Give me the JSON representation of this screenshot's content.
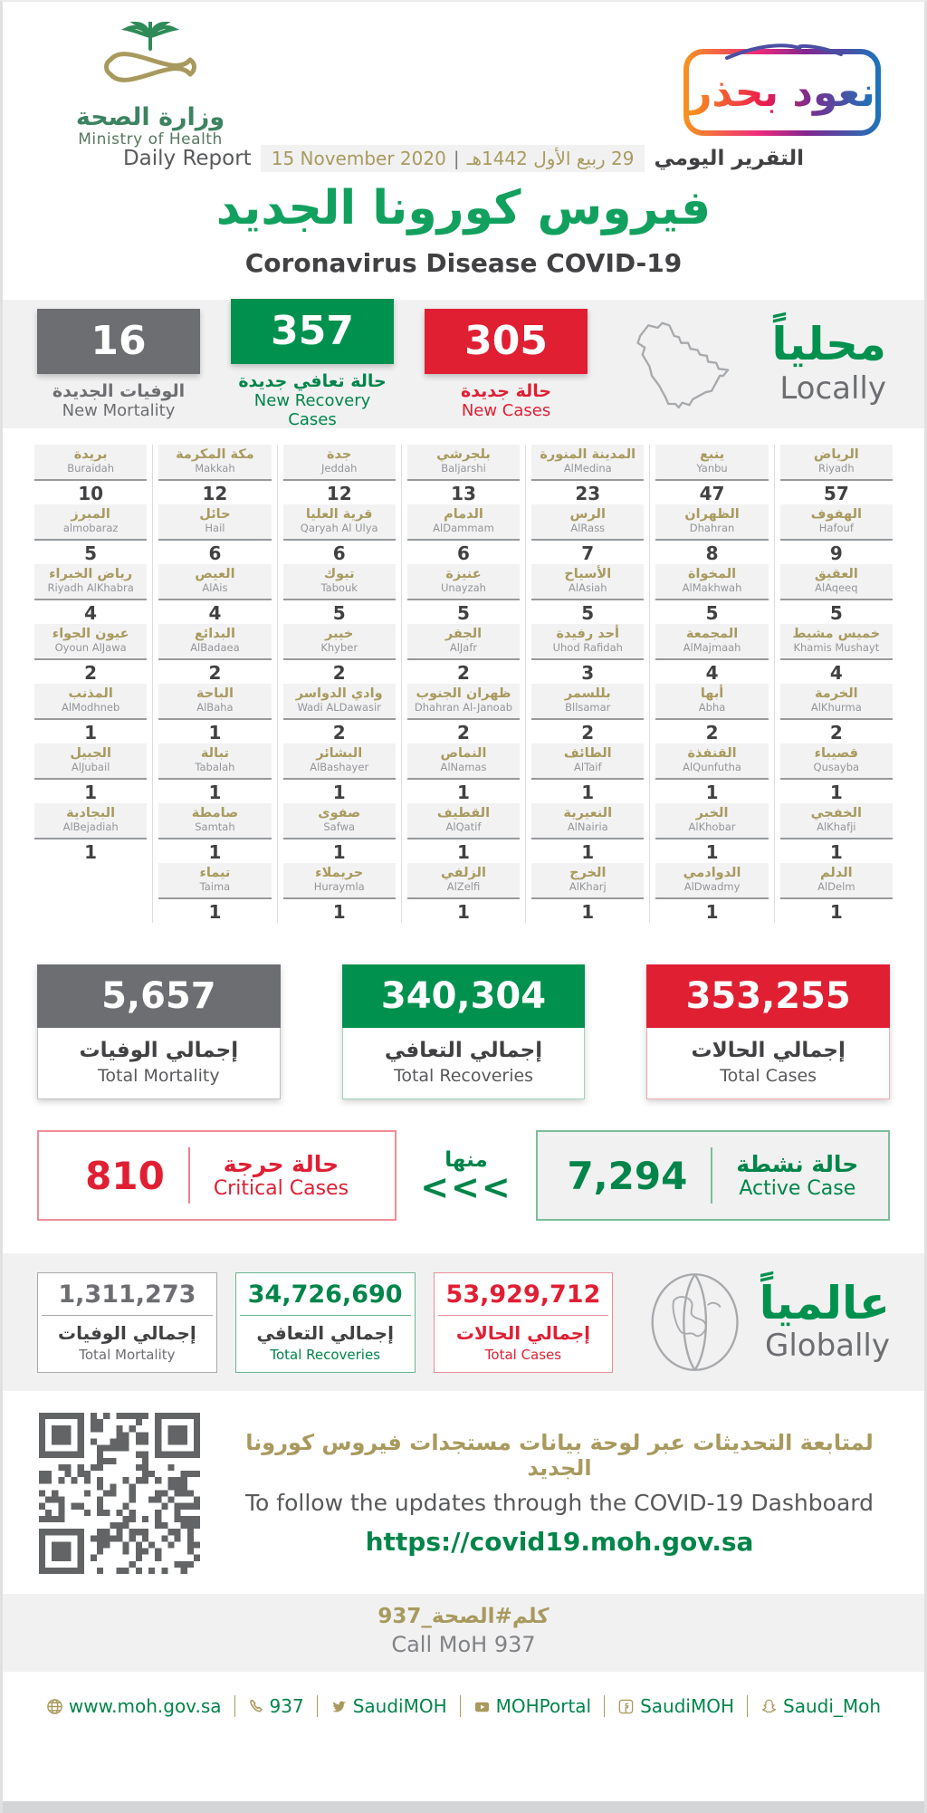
{
  "header": {
    "ministry_ar": "وزارة الصحة",
    "ministry_en": "Ministry of Health",
    "badge_text": "نعود بحذر"
  },
  "report": {
    "daily_report_en": "Daily Report",
    "date_en": "15 November 2020",
    "date_divider": "|",
    "date_hijri": "29 ربيع الأول 1442هـ",
    "daily_report_ar": "التقرير اليومي",
    "title_ar": "فيروس كورونا الجديد",
    "title_en": "Coronavirus Disease COVID-19"
  },
  "locally": {
    "label_ar": "محلياً",
    "label_en": "Locally",
    "new_mortality": {
      "value": "16",
      "label_ar": "الوفيات الجديدة",
      "label_en": "New Mortality"
    },
    "new_recovery": {
      "value": "357",
      "label_ar": "حالة تعافي جديدة",
      "label_en": "New Recovery Cases"
    },
    "new_cases": {
      "value": "305",
      "label_ar": "حالة جديدة",
      "label_en": "New Cases"
    }
  },
  "cities": {
    "columns": [
      {
        "items": [
          {
            "ar": "بريدة",
            "en": "Buraidah",
            "value": "10"
          },
          {
            "ar": "المبرز",
            "en": "almobaraz",
            "value": "5"
          },
          {
            "ar": "رياض الخبراء",
            "en": "Riyadh AlKhabra",
            "value": "4"
          },
          {
            "ar": "عيون الجواء",
            "en": "Oyoun AlJawa",
            "value": "2"
          },
          {
            "ar": "المذنب",
            "en": "AlModhneb",
            "value": "1"
          },
          {
            "ar": "الجبيل",
            "en": "AlJubail",
            "value": "1"
          },
          {
            "ar": "البجادية",
            "en": "AlBejadiah",
            "value": "1"
          }
        ]
      },
      {
        "items": [
          {
            "ar": "مكة المكرمة",
            "en": "Makkah",
            "value": "12"
          },
          {
            "ar": "حائل",
            "en": "Hail",
            "value": "6"
          },
          {
            "ar": "العيص",
            "en": "AlAis",
            "value": "4"
          },
          {
            "ar": "البدائع",
            "en": "AlBadaea",
            "value": "2"
          },
          {
            "ar": "الباحة",
            "en": "AlBaha",
            "value": "1"
          },
          {
            "ar": "تبالة",
            "en": "Tabalah",
            "value": "1"
          },
          {
            "ar": "صامطة",
            "en": "Samtah",
            "value": "1"
          },
          {
            "ar": "تيماء",
            "en": "Taima",
            "value": "1"
          }
        ]
      },
      {
        "items": [
          {
            "ar": "جدة",
            "en": "Jeddah",
            "value": "12"
          },
          {
            "ar": "قرية العليا",
            "en": "Qaryah Al Ulya",
            "value": "6"
          },
          {
            "ar": "تبوك",
            "en": "Tabouk",
            "value": "5"
          },
          {
            "ar": "خيبر",
            "en": "Khyber",
            "value": "2"
          },
          {
            "ar": "وادي الدواسر",
            "en": "Wadi ALDawasir",
            "value": "2"
          },
          {
            "ar": "البشائر",
            "en": "AlBashayer",
            "value": "1"
          },
          {
            "ar": "صفوى",
            "en": "Safwa",
            "value": "1"
          },
          {
            "ar": "حريملاء",
            "en": "Huraymla",
            "value": "1"
          }
        ]
      },
      {
        "items": [
          {
            "ar": "بلجرشي",
            "en": "Baljarshi",
            "value": "13"
          },
          {
            "ar": "الدمام",
            "en": "AlDammam",
            "value": "6"
          },
          {
            "ar": "عنيزة",
            "en": "Unayzah",
            "value": "5"
          },
          {
            "ar": "الجفر",
            "en": "AlJafr",
            "value": "2"
          },
          {
            "ar": "ظهران الجنوب",
            "en": "Dhahran Al-Janoab",
            "value": "2"
          },
          {
            "ar": "النماص",
            "en": "AlNamas",
            "value": "1"
          },
          {
            "ar": "القطيف",
            "en": "AlQatif",
            "value": "1"
          },
          {
            "ar": "الزلفي",
            "en": "AlZelfi",
            "value": "1"
          }
        ]
      },
      {
        "items": [
          {
            "ar": "المدينة المنورة",
            "en": "AlMedina",
            "value": "23"
          },
          {
            "ar": "الرس",
            "en": "AlRass",
            "value": "7"
          },
          {
            "ar": "الأسياح",
            "en": "AlAsiah",
            "value": "5"
          },
          {
            "ar": "أحد رفيدة",
            "en": "Uhod Rafidah",
            "value": "3"
          },
          {
            "ar": "بللسمر",
            "en": "Bllsamar",
            "value": "2"
          },
          {
            "ar": "الطائف",
            "en": "AlTaif",
            "value": "1"
          },
          {
            "ar": "النعيرية",
            "en": "AlNairia",
            "value": "1"
          },
          {
            "ar": "الخرج",
            "en": "AlKharj",
            "value": "1"
          }
        ]
      },
      {
        "items": [
          {
            "ar": "ينبع",
            "en": "Yanbu",
            "value": "47"
          },
          {
            "ar": "الظهران",
            "en": "Dhahran",
            "value": "8"
          },
          {
            "ar": "المخواة",
            "en": "AlMakhwah",
            "value": "5"
          },
          {
            "ar": "المجمعة",
            "en": "AlMajmaah",
            "value": "4"
          },
          {
            "ar": "أبها",
            "en": "Abha",
            "value": "2"
          },
          {
            "ar": "القنفذة",
            "en": "AlQunfutha",
            "value": "1"
          },
          {
            "ar": "الخبر",
            "en": "AlKhobar",
            "value": "1"
          },
          {
            "ar": "الدوادمي",
            "en": "AlDwadmy",
            "value": "1"
          }
        ]
      },
      {
        "items": [
          {
            "ar": "الرياض",
            "en": "Riyadh",
            "value": "57"
          },
          {
            "ar": "الهفوف",
            "en": "Hafouf",
            "value": "9"
          },
          {
            "ar": "العقيق",
            "en": "AlAqeeq",
            "value": "5"
          },
          {
            "ar": "خميس مشيط",
            "en": "Khamis Mushayt",
            "value": "4"
          },
          {
            "ar": "الخرمة",
            "en": "AlKhurma",
            "value": "2"
          },
          {
            "ar": "قصيباء",
            "en": "Qusayba",
            "value": "1"
          },
          {
            "ar": "الخفجي",
            "en": "AlKhafji",
            "value": "1"
          },
          {
            "ar": "الدلم",
            "en": "AlDelm",
            "value": "1"
          }
        ]
      }
    ]
  },
  "totals_local": {
    "mortality": {
      "value": "5,657",
      "label_ar": "إجمالي الوفيات",
      "label_en": "Total Mortality"
    },
    "recoveries": {
      "value": "340,304",
      "label_ar": "إجمالي التعافي",
      "label_en": "Total Recoveries"
    },
    "cases": {
      "value": "353,255",
      "label_ar": "إجمالي الحالات",
      "label_en": "Total Cases"
    }
  },
  "critical_active": {
    "of_which": "منها",
    "arrows": "<<<",
    "critical": {
      "value": "810",
      "label_ar": "حالة حرجة",
      "label_en": "Critical Cases"
    },
    "active": {
      "value": "7,294",
      "label_ar": "حالة نشطة",
      "label_en": "Active Case"
    }
  },
  "globally": {
    "label_ar": "عالمياً",
    "label_en": "Globally",
    "mortality": {
      "value": "1,311,273",
      "label_ar": "إجمالي الوفيات",
      "label_en": "Total Mortality"
    },
    "recoveries": {
      "value": "34,726,690",
      "label_ar": "إجمالي التعافي",
      "label_en": "Total Recoveries"
    },
    "cases": {
      "value": "53,929,712",
      "label_ar": "إجمالي الحالات",
      "label_en": "Total Cases"
    }
  },
  "dashboard": {
    "line_ar": "لمتابعة التحديثات عبر لوحة بيانات مستجدات فيروس كورونا الجديد",
    "line_en": "To follow the updates through the COVID-19 Dashboard",
    "url": "https://covid19.moh.gov.sa"
  },
  "call": {
    "hashtag_ar": "كلم#الصحة_937",
    "call_en": "Call MoH 937"
  },
  "footer": {
    "items": [
      {
        "icon": "globe-icon",
        "label": "www.moh.gov.sa"
      },
      {
        "icon": "phone-icon",
        "label": "937"
      },
      {
        "icon": "twitter-icon",
        "label": "SaudiMOH"
      },
      {
        "icon": "youtube-icon",
        "label": "MOHPortal"
      },
      {
        "icon": "facebook-icon",
        "label": "SaudiMOH"
      },
      {
        "icon": "snapchat-icon",
        "label": "Saudi_Moh"
      }
    ]
  }
}
